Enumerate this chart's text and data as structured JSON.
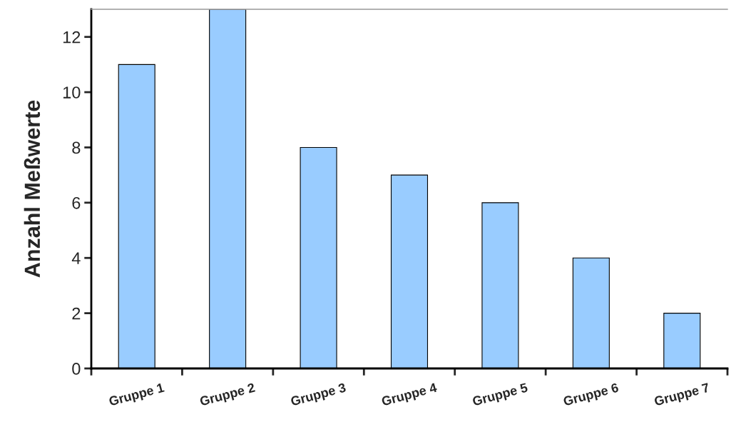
{
  "chart_data": {
    "type": "bar",
    "ylabel": "Anzahl Meßwerte",
    "categories": [
      "Gruppe 1",
      "Gruppe 2",
      "Gruppe 3",
      "Gruppe 4",
      "Gruppe 5",
      "Gruppe 6",
      "Gruppe 7"
    ],
    "values": [
      11,
      13,
      8,
      7,
      6,
      4,
      2
    ],
    "color": "#99ccff",
    "ylim": [
      0,
      13
    ],
    "yticks": [
      0,
      2,
      4,
      6,
      8,
      10,
      12
    ],
    "grid": false,
    "legend": false
  }
}
